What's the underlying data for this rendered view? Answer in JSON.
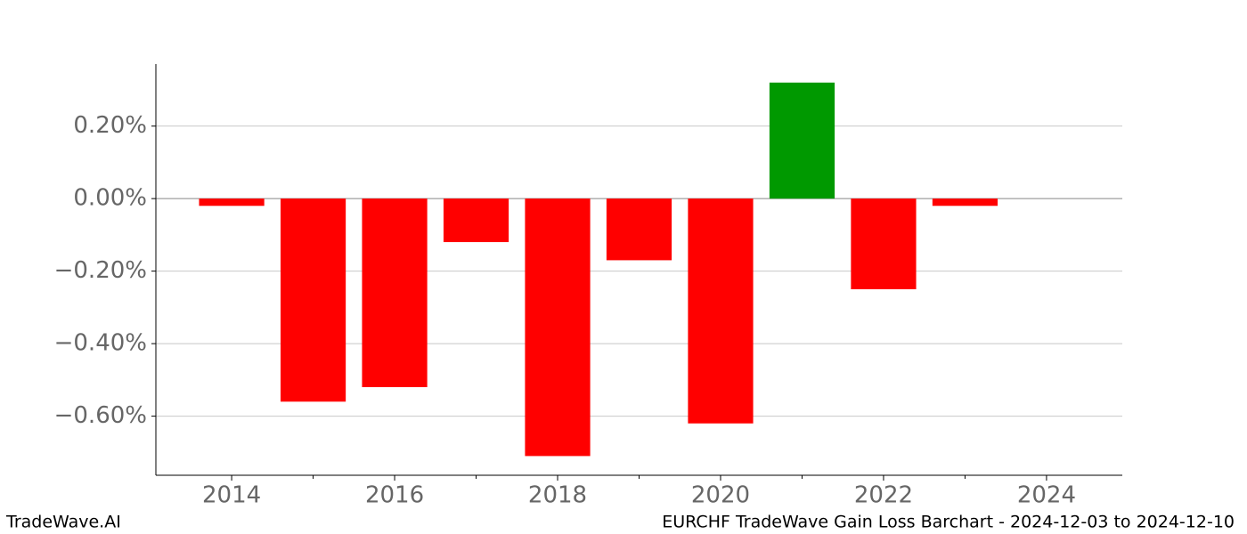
{
  "chart_data": {
    "type": "bar",
    "subtitle": "EURCHF TradeWave Gain Loss Barchart - 2024-12-03 to 2024-12-10",
    "watermark": "TradeWave.AI",
    "x": [
      2014,
      2015,
      2016,
      2017,
      2018,
      2019,
      2020,
      2021,
      2022,
      2023
    ],
    "values": [
      -0.02,
      -0.56,
      -0.52,
      -0.12,
      -0.71,
      -0.17,
      -0.62,
      0.32,
      -0.25,
      -0.02
    ],
    "positive_color": "#009900",
    "negative_color": "#ff0000",
    "xlim": [
      2013.07,
      2024.93
    ],
    "xticks": [
      2014,
      2016,
      2018,
      2020,
      2022,
      2024
    ],
    "xminorticks": [
      2015,
      2017,
      2019,
      2021,
      2023
    ],
    "ylim": [
      -0.763,
      0.371
    ],
    "yticks": [
      {
        "value": 0.2,
        "label": "0.20%"
      },
      {
        "value": 0,
        "label": "0.00%"
      },
      {
        "value": -0.2,
        "label": "−0.20%"
      },
      {
        "value": -0.4,
        "label": "−0.40%"
      },
      {
        "value": -0.6,
        "label": "−0.60%"
      }
    ],
    "grid": true
  }
}
